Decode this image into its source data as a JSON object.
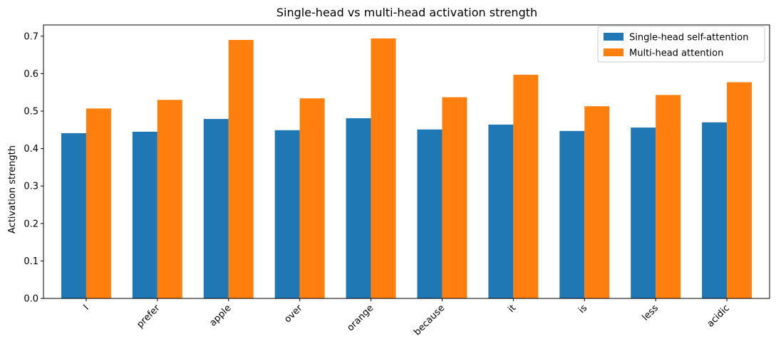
{
  "chart_data": {
    "type": "bar",
    "title": "Single-head vs multi-head activation strength",
    "xlabel": "",
    "ylabel": "Activation strength",
    "ylim": [
      0,
      0.73
    ],
    "yticks": [
      0.0,
      0.1,
      0.2,
      0.3,
      0.4,
      0.5,
      0.6,
      0.7
    ],
    "ytick_labels": [
      "0.0",
      "0.1",
      "0.2",
      "0.3",
      "0.4",
      "0.5",
      "0.6",
      "0.7"
    ],
    "categories": [
      "I",
      "prefer",
      "apple",
      "over",
      "orange",
      "because",
      "it",
      "is",
      "less",
      "acidic"
    ],
    "series": [
      {
        "name": "Single-head self-attention",
        "color": "#1f77b4",
        "values": [
          0.441,
          0.445,
          0.479,
          0.449,
          0.481,
          0.451,
          0.464,
          0.447,
          0.456,
          0.47
        ]
      },
      {
        "name": "Multi-head attention",
        "color": "#ff7f0e",
        "values": [
          0.507,
          0.53,
          0.69,
          0.534,
          0.694,
          0.537,
          0.597,
          0.513,
          0.543,
          0.577
        ]
      }
    ],
    "legend_position": "top-right",
    "grid": false
  }
}
